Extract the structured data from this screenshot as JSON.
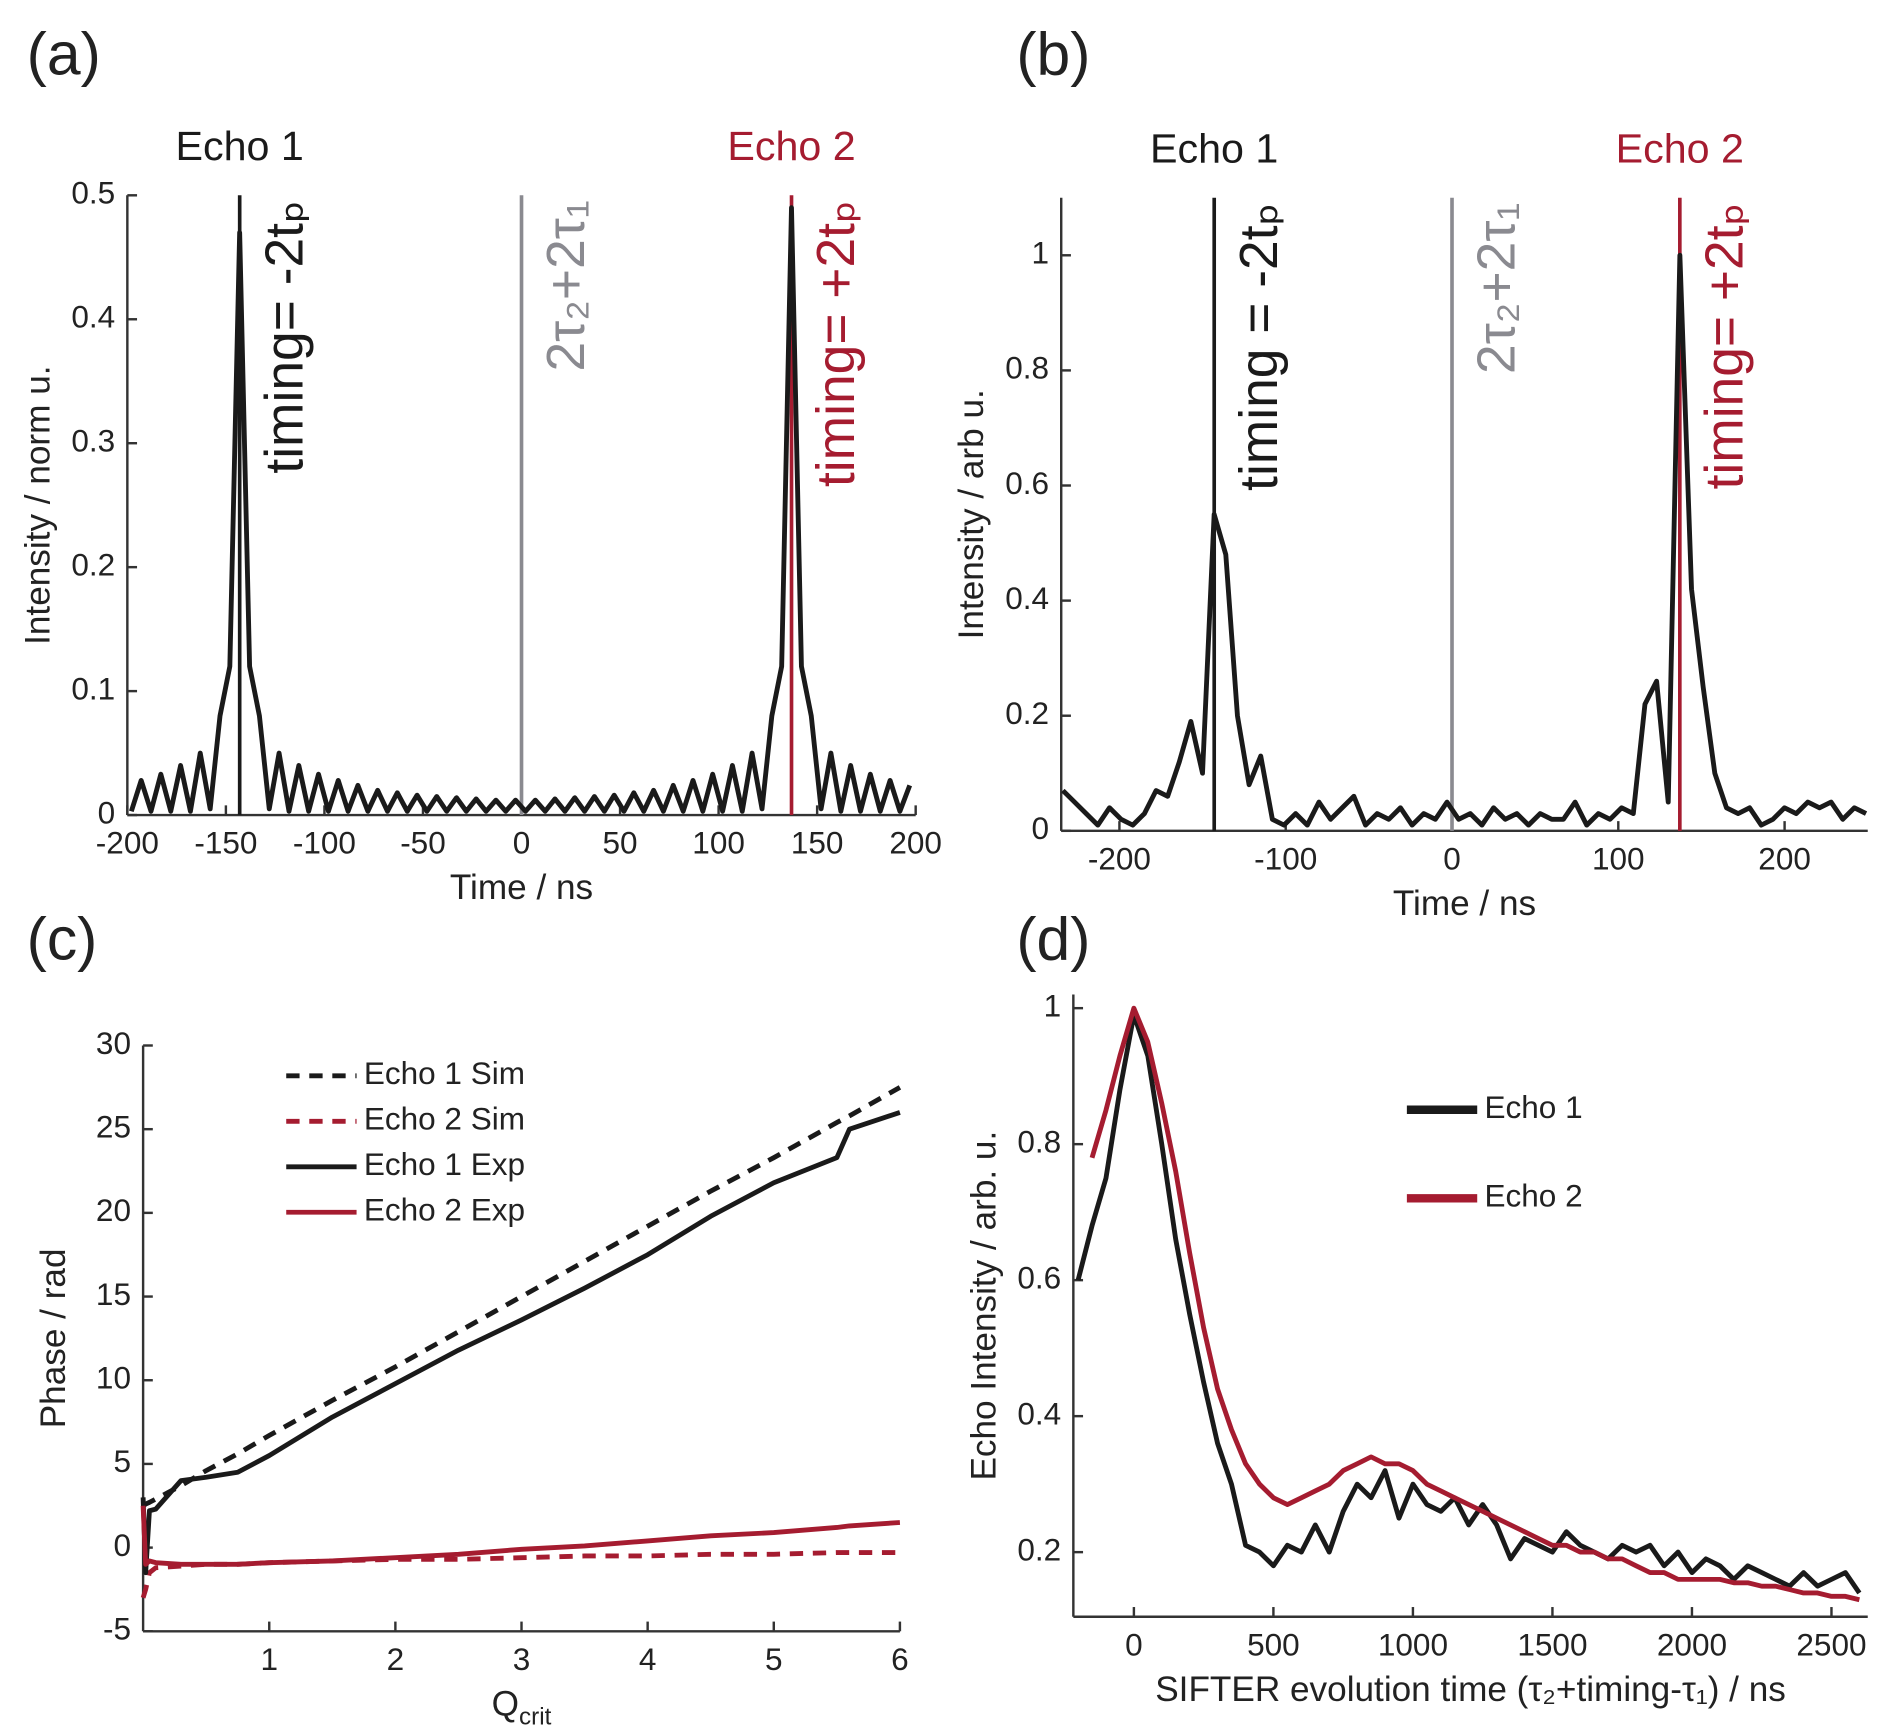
{
  "chart_data": [
    {
      "type": "line",
      "panel_label": "(a)",
      "xlabel": "Time / ns",
      "ylabel": "Intensity / norm u.",
      "xlim": [
        -200,
        200
      ],
      "xticks": [
        -200,
        -150,
        -100,
        -50,
        0,
        50,
        100,
        150,
        200
      ],
      "ylim": [
        0,
        0.5
      ],
      "yticks": [
        0,
        0.1,
        0.2,
        0.3,
        0.4,
        0.5
      ],
      "x": [
        -198,
        -193,
        -188,
        -183,
        -178,
        -173,
        -168,
        -163,
        -158,
        -153,
        -148,
        -143,
        -138,
        -133,
        -128,
        -123,
        -118,
        -113,
        -108,
        -103,
        -98,
        -93,
        -88,
        -83,
        -78,
        -73,
        -68,
        -63,
        -58,
        -53,
        -48,
        -43,
        -38,
        -33,
        -28,
        -23,
        -18,
        -13,
        -8,
        -3,
        2,
        7,
        12,
        17,
        22,
        27,
        32,
        37,
        42,
        47,
        52,
        57,
        62,
        67,
        72,
        77,
        82,
        87,
        92,
        97,
        102,
        107,
        112,
        117,
        122,
        127,
        132,
        137,
        142,
        147,
        152,
        157,
        162,
        167,
        172,
        177,
        182,
        187,
        192,
        197
      ],
      "series": [
        {
          "color": "#1a1a1a",
          "values": [
            0.003,
            0.028,
            0.003,
            0.033,
            0.003,
            0.04,
            0.003,
            0.05,
            0.005,
            0.08,
            0.12,
            0.47,
            0.12,
            0.08,
            0.005,
            0.05,
            0.003,
            0.04,
            0.003,
            0.033,
            0.003,
            0.028,
            0.003,
            0.024,
            0.003,
            0.02,
            0.003,
            0.018,
            0.003,
            0.016,
            0.003,
            0.015,
            0.003,
            0.014,
            0.003,
            0.013,
            0.003,
            0.012,
            0.003,
            0.012,
            0.003,
            0.012,
            0.003,
            0.013,
            0.003,
            0.014,
            0.003,
            0.015,
            0.003,
            0.016,
            0.003,
            0.018,
            0.003,
            0.02,
            0.003,
            0.024,
            0.003,
            0.028,
            0.003,
            0.033,
            0.003,
            0.04,
            0.003,
            0.05,
            0.005,
            0.08,
            0.12,
            0.49,
            0.12,
            0.08,
            0.005,
            0.05,
            0.003,
            0.04,
            0.003,
            0.033,
            0.003,
            0.028,
            0.003,
            0.024
          ]
        }
      ],
      "vlines": [
        {
          "x": -143,
          "color": "#1a1a1a",
          "label": "Echo 1",
          "note": "timing= -2tₚ"
        },
        {
          "x": 0,
          "color": "#8a8a90",
          "note": "2τ₂+2τ₁"
        },
        {
          "x": 137,
          "color": "#a51c30",
          "label": "Echo 2",
          "note": "timing= +2tₚ"
        }
      ]
    },
    {
      "type": "line",
      "panel_label": "(b)",
      "xlabel": "Time / ns",
      "ylabel": "Intensity / arb u.",
      "xlim": [
        -235,
        250
      ],
      "xticks": [
        -200,
        -100,
        0,
        100,
        200
      ],
      "ylim": [
        0,
        1.1
      ],
      "yticks": [
        0,
        0.2,
        0.4,
        0.6,
        0.8,
        1
      ],
      "x": [
        -234,
        -227,
        -220,
        -213,
        -206,
        -199,
        -192,
        -185,
        -178,
        -171,
        -164,
        -157,
        -150,
        -143,
        -136,
        -129,
        -122,
        -115,
        -108,
        -101,
        -94,
        -87,
        -80,
        -73,
        -66,
        -59,
        -52,
        -45,
        -38,
        -31,
        -24,
        -17,
        -10,
        -3,
        4,
        11,
        18,
        25,
        32,
        39,
        46,
        53,
        60,
        67,
        74,
        81,
        88,
        95,
        102,
        109,
        116,
        123,
        130,
        137,
        144,
        151,
        158,
        165,
        172,
        179,
        186,
        193,
        200,
        207,
        214,
        221,
        228,
        235,
        242,
        249
      ],
      "series": [
        {
          "color": "#1a1a1a",
          "values": [
            0.07,
            0.05,
            0.03,
            0.01,
            0.04,
            0.02,
            0.01,
            0.03,
            0.07,
            0.06,
            0.12,
            0.19,
            0.1,
            0.55,
            0.48,
            0.2,
            0.08,
            0.13,
            0.02,
            0.01,
            0.03,
            0.01,
            0.05,
            0.02,
            0.04,
            0.06,
            0.01,
            0.03,
            0.02,
            0.04,
            0.01,
            0.03,
            0.02,
            0.05,
            0.02,
            0.03,
            0.01,
            0.04,
            0.02,
            0.03,
            0.01,
            0.03,
            0.02,
            0.02,
            0.05,
            0.01,
            0.03,
            0.02,
            0.04,
            0.03,
            0.22,
            0.26,
            0.05,
            1.0,
            0.42,
            0.25,
            0.1,
            0.04,
            0.03,
            0.04,
            0.01,
            0.02,
            0.04,
            0.03,
            0.05,
            0.04,
            0.05,
            0.02,
            0.04,
            0.03
          ]
        }
      ],
      "vlines": [
        {
          "x": -143,
          "color": "#1a1a1a",
          "label": "Echo 1",
          "note": "timing = -2tₚ"
        },
        {
          "x": 0,
          "color": "#8a8a90",
          "note": "2τ₂+2τ₁"
        },
        {
          "x": 137,
          "color": "#a51c30",
          "label": "Echo 2",
          "note": "timing= +2tₚ"
        }
      ]
    },
    {
      "type": "line",
      "panel_label": "(c)",
      "xlabel": "Q",
      "xlabel_sub": "crit",
      "ylabel": "Phase / rad",
      "xlim": [
        0,
        6
      ],
      "xticks": [
        1,
        2,
        3,
        4,
        5,
        6
      ],
      "ylim": [
        -5,
        30
      ],
      "yticks": [
        -5,
        0,
        5,
        10,
        15,
        20,
        25,
        30
      ],
      "legend": "upper left",
      "x": [
        0,
        0.02,
        0.05,
        0.1,
        0.3,
        0.5,
        0.75,
        1,
        1.5,
        2,
        2.5,
        3,
        3.5,
        4,
        4.5,
        5,
        5.5,
        5.6,
        6
      ],
      "series": [
        {
          "name": "Echo 1 Sim",
          "color": "#1a1a1a",
          "dash": true,
          "values": [
            2.5,
            2.6,
            2.7,
            2.9,
            3.7,
            4.6,
            5.6,
            6.7,
            8.8,
            10.8,
            12.9,
            15,
            17.1,
            19.2,
            21.3,
            23.3,
            25.4,
            25.8,
            27.5
          ]
        },
        {
          "name": "Echo 2 Sim",
          "color": "#a51c30",
          "dash": true,
          "values": [
            -3,
            -2.5,
            -1.5,
            -1.2,
            -1.1,
            -1,
            -1,
            -0.9,
            -0.8,
            -0.7,
            -0.7,
            -0.6,
            -0.5,
            -0.5,
            -0.4,
            -0.4,
            -0.3,
            -0.3,
            -0.3
          ]
        },
        {
          "name": "Echo 1 Exp",
          "color": "#1a1a1a",
          "values": [
            3,
            -1.5,
            2.2,
            2.3,
            4,
            4.2,
            4.5,
            5.5,
            7.8,
            9.8,
            11.8,
            13.6,
            15.5,
            17.5,
            19.8,
            21.8,
            23.3,
            25,
            26
          ]
        },
        {
          "name": "Echo 2 Exp",
          "color": "#a51c30",
          "values": [
            2.5,
            -1,
            -0.8,
            -0.9,
            -1,
            -1,
            -1,
            -0.9,
            -0.8,
            -0.6,
            -0.4,
            -0.1,
            0.1,
            0.4,
            0.7,
            0.9,
            1.2,
            1.3,
            1.5
          ]
        }
      ]
    },
    {
      "type": "line",
      "panel_label": "(d)",
      "xlabel": "SIFTER evolution time  (τ₂+timing-τ₁) / ns",
      "ylabel": "Echo Intensity / arb. u.",
      "xlim": [
        -217,
        2630
      ],
      "xticks": [
        0,
        500,
        1000,
        1500,
        2000,
        2500
      ],
      "ylim": [
        0.105,
        1.02
      ],
      "yticks": [
        0.2,
        0.4,
        0.6,
        0.8,
        1
      ],
      "legend": "upper right",
      "series": [
        {
          "name": "Echo 1",
          "color": "#1a1a1a",
          "x": [
            -200,
            -150,
            -100,
            -50,
            0,
            50,
            100,
            150,
            200,
            250,
            300,
            350,
            400,
            450,
            500,
            550,
            600,
            650,
            700,
            750,
            800,
            850,
            900,
            950,
            1000,
            1050,
            1100,
            1150,
            1200,
            1250,
            1300,
            1350,
            1400,
            1450,
            1500,
            1550,
            1600,
            1650,
            1700,
            1750,
            1800,
            1850,
            1900,
            1950,
            2000,
            2050,
            2100,
            2150,
            2200,
            2250,
            2300,
            2350,
            2400,
            2450,
            2500,
            2550,
            2600
          ],
          "values": [
            0.6,
            0.68,
            0.75,
            0.88,
            0.99,
            0.93,
            0.8,
            0.66,
            0.55,
            0.45,
            0.36,
            0.3,
            0.21,
            0.2,
            0.18,
            0.21,
            0.2,
            0.24,
            0.2,
            0.26,
            0.3,
            0.28,
            0.32,
            0.25,
            0.3,
            0.27,
            0.26,
            0.28,
            0.24,
            0.27,
            0.24,
            0.19,
            0.22,
            0.21,
            0.2,
            0.23,
            0.21,
            0.2,
            0.19,
            0.21,
            0.2,
            0.21,
            0.18,
            0.2,
            0.17,
            0.19,
            0.18,
            0.16,
            0.18,
            0.17,
            0.16,
            0.15,
            0.17,
            0.15,
            0.16,
            0.17,
            0.14
          ]
        },
        {
          "name": "Echo 2",
          "color": "#a51c30",
          "x": [
            -150,
            -100,
            -50,
            0,
            50,
            100,
            150,
            200,
            250,
            300,
            350,
            400,
            450,
            500,
            550,
            600,
            650,
            700,
            750,
            800,
            850,
            900,
            950,
            1000,
            1050,
            1100,
            1150,
            1200,
            1250,
            1300,
            1350,
            1400,
            1450,
            1500,
            1550,
            1600,
            1650,
            1700,
            1750,
            1800,
            1850,
            1900,
            1950,
            2000,
            2050,
            2100,
            2150,
            2200,
            2250,
            2300,
            2350,
            2400,
            2450,
            2500,
            2550,
            2600
          ],
          "values": [
            0.78,
            0.85,
            0.93,
            1.0,
            0.95,
            0.86,
            0.76,
            0.64,
            0.53,
            0.44,
            0.38,
            0.33,
            0.3,
            0.28,
            0.27,
            0.28,
            0.29,
            0.3,
            0.32,
            0.33,
            0.34,
            0.33,
            0.33,
            0.32,
            0.3,
            0.29,
            0.28,
            0.27,
            0.26,
            0.25,
            0.24,
            0.23,
            0.22,
            0.21,
            0.21,
            0.2,
            0.2,
            0.19,
            0.19,
            0.18,
            0.17,
            0.17,
            0.16,
            0.16,
            0.16,
            0.16,
            0.155,
            0.155,
            0.15,
            0.15,
            0.145,
            0.14,
            0.14,
            0.135,
            0.135,
            0.13
          ]
        }
      ]
    }
  ]
}
